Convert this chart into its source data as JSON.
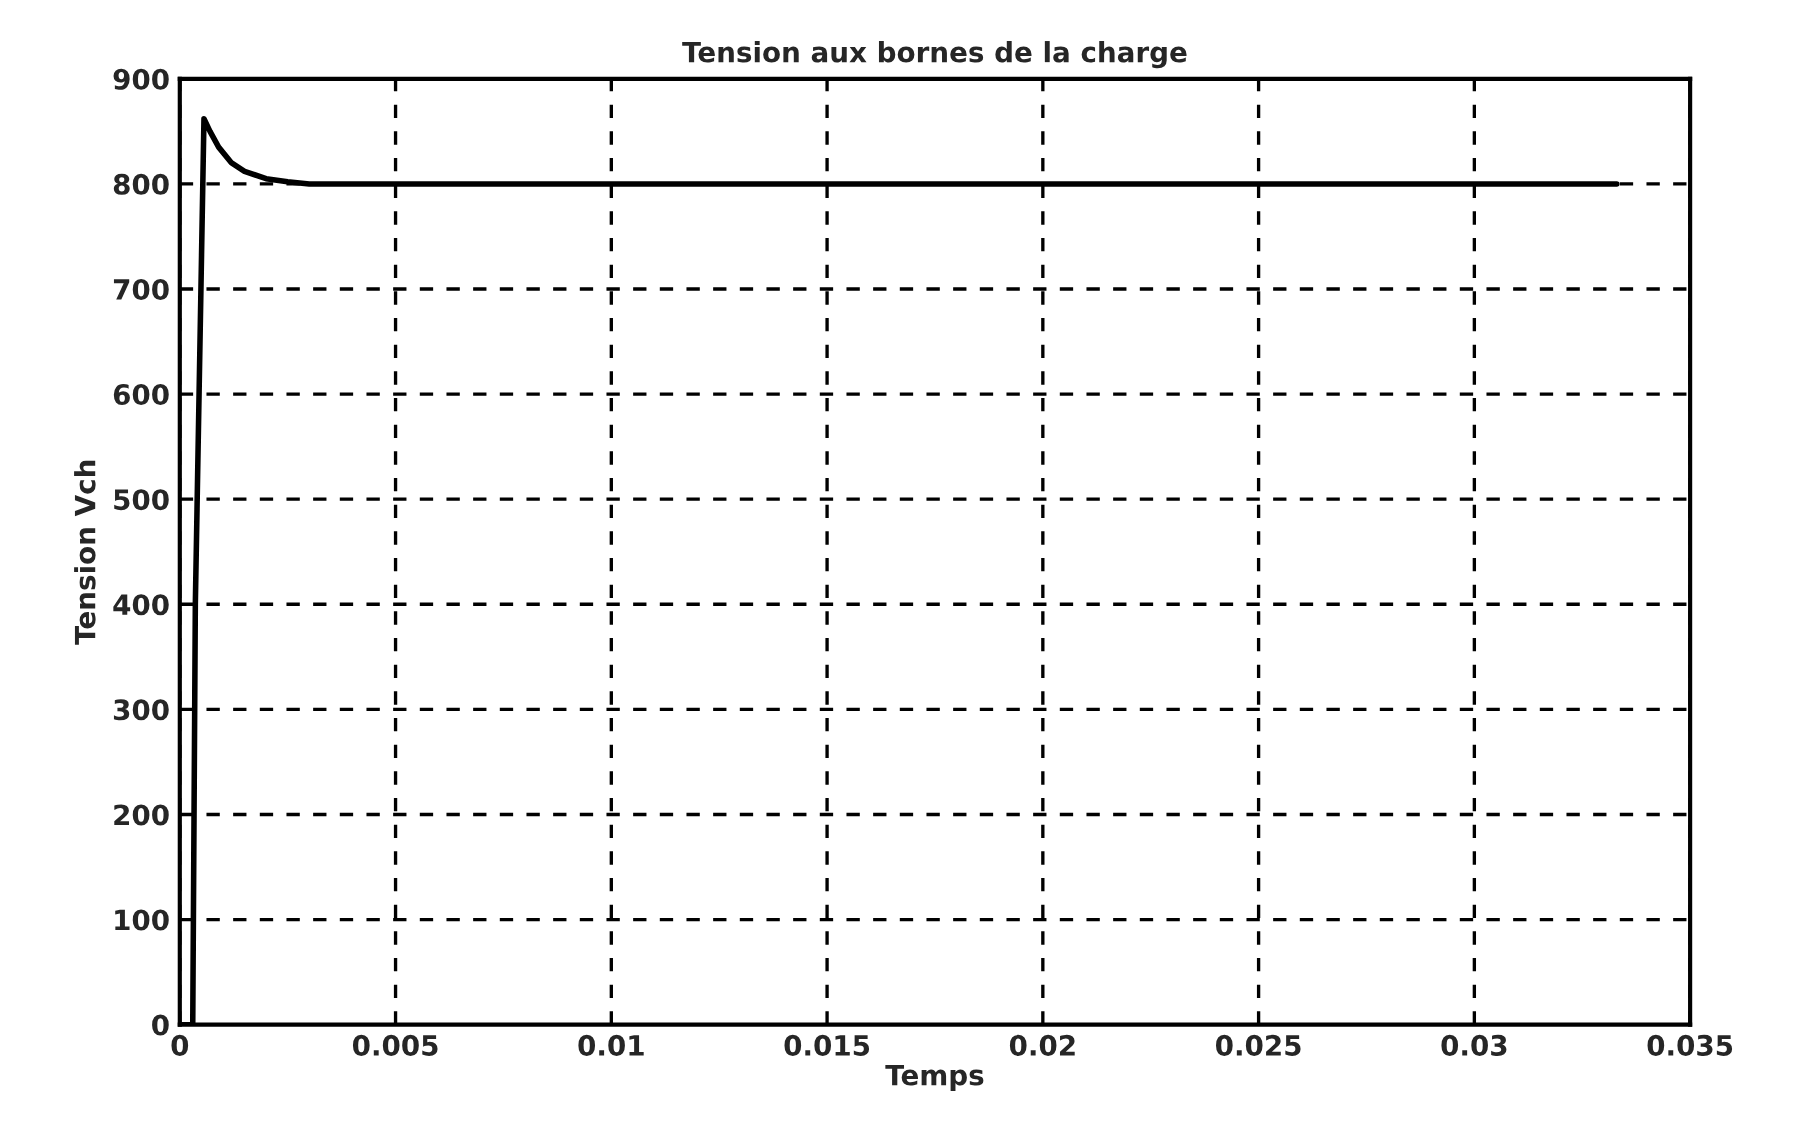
{
  "chart_data": {
    "type": "line",
    "title": "Tension aux bornes de la charge",
    "xlabel": "Temps",
    "ylabel": "Tension Vch",
    "x": [
      0,
      0.0003,
      0.00036,
      0.00056,
      0.0007,
      0.0009,
      0.0012,
      0.0015,
      0.002,
      0.0025,
      0.003,
      0.005,
      0.01,
      0.02,
      0.0333
    ],
    "series": [
      {
        "color": "#000000",
        "values": [
          0,
          0,
          400,
          862,
          850,
          835,
          820,
          812,
          805,
          802,
          800,
          800,
          800,
          800,
          800
        ]
      }
    ],
    "xlim": [
      0,
      0.035
    ],
    "xticks": [
      0,
      0.005,
      0.01,
      0.015,
      0.02,
      0.025,
      0.03,
      0.035
    ],
    "ylim": [
      0,
      900
    ],
    "yticks": [
      0,
      100,
      200,
      300,
      400,
      500,
      600,
      700,
      800,
      900
    ],
    "grid": true,
    "line_style": "solid"
  }
}
